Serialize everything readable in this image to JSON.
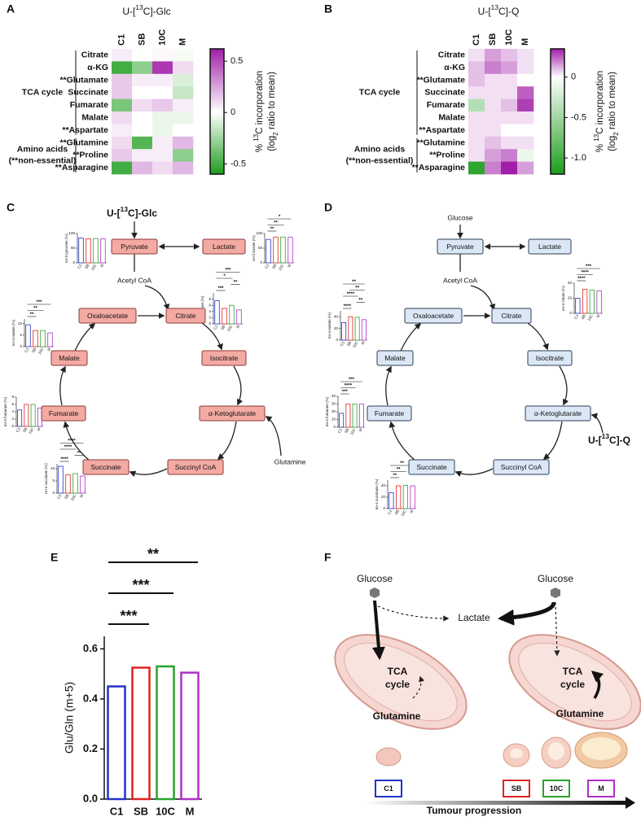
{
  "panel_labels": [
    "A",
    "B",
    "C",
    "D",
    "E",
    "F"
  ],
  "chart_data": [
    {
      "type": "heatmap",
      "title": [
        "U-[",
        "13",
        "C]-Glc"
      ],
      "columns": [
        "C1",
        "SB",
        "10C",
        "M"
      ],
      "rows": [
        "Citrate",
        "α-KG",
        "**Glutamate",
        "Succinate",
        "Fumarate",
        "Malate",
        "**Aspartate",
        "**Glutamine",
        "**Proline",
        "**Asparagine"
      ],
      "values": [
        [
          0.05,
          0,
          0.02,
          -0.02
        ],
        [
          -0.5,
          -0.3,
          0.55,
          0.1
        ],
        [
          0.15,
          0.05,
          0.05,
          -0.1
        ],
        [
          0.15,
          0,
          0,
          -0.15
        ],
        [
          -0.35,
          0.1,
          0.15,
          0.05
        ],
        [
          0.1,
          0,
          -0.05,
          -0.05
        ],
        [
          0.05,
          0,
          -0.05,
          0
        ],
        [
          0.1,
          -0.45,
          0.05,
          0.2
        ],
        [
          0.15,
          0.05,
          0.05,
          -0.3
        ],
        [
          -0.5,
          0.2,
          0.1,
          0.2
        ]
      ],
      "clim": [
        -0.6,
        0.62
      ],
      "cticks": [
        -0.5,
        0,
        0.5
      ],
      "colors": [
        "#1c9c1c",
        "#ffffff",
        "#a11fa8"
      ],
      "colorbar_label": [
        [
          "% ",
          "13",
          "C incorporation"
        ],
        [
          "(log",
          "2",
          " ratio to mean)"
        ]
      ],
      "groups": [
        {
          "label": [
            "TCA cycle"
          ],
          "rows": [
            "Citrate",
            "**Aspartate"
          ]
        },
        {
          "label": [
            "Amino acids",
            "(**non-essential)"
          ],
          "rows": [
            "**Glutamine",
            "**Asparagine"
          ]
        }
      ]
    },
    {
      "type": "heatmap",
      "title": [
        "U-[",
        "13",
        "C]-Q"
      ],
      "columns": [
        "C1",
        "SB",
        "10C",
        "M"
      ],
      "rows": [
        "Citrate",
        "α-KG",
        "**Glutamate",
        "Succinate",
        "Fumarate",
        "Malate",
        "**Aspartate",
        "**Glutamine",
        "**Proline",
        "**Asparagine"
      ],
      "values": [
        [
          0.05,
          0.15,
          0.1,
          0.05
        ],
        [
          0.1,
          0.2,
          0.15,
          0.05
        ],
        [
          0.1,
          0.05,
          0.05,
          0
        ],
        [
          0.05,
          0.05,
          0.05,
          0.25
        ],
        [
          -0.4,
          0.05,
          0.1,
          0.3
        ],
        [
          0.05,
          0.05,
          0.05,
          0.05
        ],
        [
          0.05,
          0.05,
          0,
          0
        ],
        [
          0.05,
          0.1,
          0.05,
          0.05
        ],
        [
          0.05,
          0.15,
          0.2,
          -0.1
        ],
        [
          -1.1,
          0.2,
          0.35,
          0.15
        ]
      ],
      "clim": [
        -1.2,
        0.35
      ],
      "cticks": [
        {
          "value": -1,
          "label": "-1.0"
        },
        -0.5,
        0
      ],
      "colors": [
        "#1c9c1c",
        "#ffffff",
        "#a11fa8"
      ],
      "colorbar_label": [
        [
          "% ",
          "13",
          "C incorporation"
        ],
        [
          "(log",
          "2",
          " ratio to mean)"
        ]
      ],
      "groups": [
        {
          "label": [
            "TCA cycle"
          ],
          "rows": [
            "Citrate",
            "**Aspartate"
          ]
        },
        {
          "label": [
            "Amino acids",
            "(**non-essential)"
          ],
          "rows": [
            "**Glutamine",
            "**Asparagine"
          ]
        }
      ]
    },
    {
      "type": "bar",
      "ylabel": "m+3 pyruvate (%)",
      "categories": [
        "C1",
        "SB",
        "10C",
        "M"
      ],
      "values": [
        85,
        82,
        83,
        82
      ],
      "colors": [
        "#2432c8",
        "#e0231f",
        "#2aa32a",
        "#b02ec8"
      ],
      "ylim": [
        0,
        100
      ],
      "yticks": [
        0,
        50,
        100
      ],
      "significance": []
    },
    {
      "type": "bar",
      "ylabel": "m+3 lactate (%)",
      "categories": [
        "C1",
        "SB",
        "10C",
        "M"
      ],
      "values": [
        80,
        88,
        88,
        87
      ],
      "colors": [
        "#2432c8",
        "#e0231f",
        "#2aa32a",
        "#b02ec8"
      ],
      "ylim": [
        0,
        100
      ],
      "yticks": [
        0,
        50,
        100
      ],
      "significance": [
        {
          "between": [
            "C1",
            "SB"
          ],
          "label": "**"
        },
        {
          "between": [
            "C1",
            "10C"
          ],
          "label": "**"
        },
        {
          "between": [
            "C1",
            "M"
          ],
          "label": "*"
        }
      ]
    },
    {
      "type": "bar",
      "ylabel": "m+6 citrate (%)",
      "categories": [
        "C1",
        "SB",
        "10C",
        "M"
      ],
      "values": [
        7.5,
        5,
        6,
        4.5
      ],
      "colors": [
        "#2432c8",
        "#e0231f",
        "#2aa32a",
        "#b02ec8"
      ],
      "ylim": [
        0,
        10
      ],
      "yticks": [
        0,
        2,
        4,
        6,
        8
      ],
      "significance": [
        {
          "between": [
            "C1",
            "SB"
          ],
          "label": "***"
        },
        {
          "between": [
            "10C",
            "M"
          ],
          "label": "**"
        },
        {
          "between": [
            "C1",
            "10C"
          ],
          "label": "*"
        },
        {
          "between": [
            "C1",
            "M"
          ],
          "label": "***"
        }
      ]
    },
    {
      "type": "bar",
      "ylabel": "m+4 malate (%)",
      "categories": [
        "C1",
        "SB",
        "10C",
        "M"
      ],
      "values": [
        9.5,
        7,
        7,
        6
      ],
      "colors": [
        "#2432c8",
        "#e0231f",
        "#2aa32a",
        "#b02ec8"
      ],
      "ylim": [
        0,
        12
      ],
      "yticks": [
        0,
        5,
        10
      ],
      "significance": [
        {
          "between": [
            "C1",
            "SB"
          ],
          "label": "**"
        },
        {
          "between": [
            "C1",
            "10C"
          ],
          "label": "**"
        },
        {
          "between": [
            "C1",
            "M"
          ],
          "label": "***"
        }
      ]
    },
    {
      "type": "bar",
      "ylabel": "m+4 fumarate (%)",
      "categories": [
        "C1",
        "SB",
        "10C",
        "M"
      ],
      "values": [
        4.5,
        6,
        6,
        5
      ],
      "colors": [
        "#2432c8",
        "#e0231f",
        "#2aa32a",
        "#b02ec8"
      ],
      "ylim": [
        0,
        8
      ],
      "yticks": [
        0,
        2,
        4,
        6,
        8
      ],
      "significance": []
    },
    {
      "type": "bar",
      "ylabel": "m+4 succinate (%)",
      "categories": [
        "C1",
        "SB",
        "10C",
        "M"
      ],
      "values": [
        11,
        7.5,
        8,
        7
      ],
      "colors": [
        "#2432c8",
        "#e0231f",
        "#2aa32a",
        "#b02ec8"
      ],
      "ylim": [
        0,
        12
      ],
      "yticks": [
        0,
        5,
        10
      ],
      "significance": [
        {
          "between": [
            "C1",
            "SB"
          ],
          "label": "****"
        },
        {
          "between": [
            "10C",
            "M"
          ],
          "label": "**"
        },
        {
          "between": [
            "C1",
            "10C"
          ],
          "label": "****"
        },
        {
          "between": [
            "C1",
            "M"
          ],
          "label": "****"
        }
      ]
    },
    {
      "type": "bar",
      "ylabel": "m+4 citrate (%)",
      "categories": [
        "C1",
        "SB",
        "10C",
        "M"
      ],
      "values": [
        20,
        32,
        31,
        30
      ],
      "colors": [
        "#2432c8",
        "#e0231f",
        "#2aa32a",
        "#b02ec8"
      ],
      "ylim": [
        0,
        40
      ],
      "yticks": [
        0,
        20,
        40
      ],
      "significance": [
        {
          "between": [
            "C1",
            "SB"
          ],
          "label": "****"
        },
        {
          "between": [
            "C1",
            "10C"
          ],
          "label": "****"
        },
        {
          "between": [
            "C1",
            "M"
          ],
          "label": "***"
        }
      ]
    },
    {
      "type": "bar",
      "ylabel": "m+4 malate (%)",
      "categories": [
        "C1",
        "SB",
        "10C",
        "M"
      ],
      "values": [
        30,
        40,
        39,
        35
      ],
      "colors": [
        "#2432c8",
        "#e0231f",
        "#2aa32a",
        "#b02ec8"
      ],
      "ylim": [
        0,
        50
      ],
      "yticks": [
        0,
        20,
        40
      ],
      "significance": [
        {
          "between": [
            "C1",
            "SB"
          ],
          "label": "****"
        },
        {
          "between": [
            "10C",
            "M"
          ],
          "label": "**"
        },
        {
          "between": [
            "C1",
            "10C"
          ],
          "label": "****"
        },
        {
          "between": [
            "SB",
            "M"
          ],
          "label": "**"
        },
        {
          "between": [
            "C1",
            "M"
          ],
          "label": "**"
        }
      ]
    },
    {
      "type": "bar",
      "ylabel": "m+4 fumarate (%)",
      "categories": [
        "C1",
        "SB",
        "10C",
        "M"
      ],
      "values": [
        18,
        30,
        30,
        30
      ],
      "colors": [
        "#2432c8",
        "#e0231f",
        "#2aa32a",
        "#b02ec8"
      ],
      "ylim": [
        0,
        40
      ],
      "yticks": [
        0,
        10,
        20,
        30,
        40
      ],
      "significance": [
        {
          "between": [
            "C1",
            "SB"
          ],
          "label": "***"
        },
        {
          "between": [
            "C1",
            "10C"
          ],
          "label": "****"
        },
        {
          "between": [
            "C1",
            "M"
          ],
          "label": "***"
        }
      ]
    },
    {
      "type": "bar",
      "ylabel": "m+4 succinate (%)",
      "categories": [
        "C1",
        "SB",
        "10C",
        "M"
      ],
      "values": [
        28,
        40,
        41,
        40
      ],
      "colors": [
        "#2432c8",
        "#e0231f",
        "#2aa32a",
        "#b02ec8"
      ],
      "ylim": [
        0,
        50
      ],
      "yticks": [
        0,
        20,
        40
      ],
      "significance": [
        {
          "between": [
            "C1",
            "SB"
          ],
          "label": "**"
        },
        {
          "between": [
            "C1",
            "10C"
          ],
          "label": "**"
        },
        {
          "between": [
            "C1",
            "M"
          ],
          "label": "**"
        }
      ]
    },
    {
      "type": "bar",
      "ylabel": "Glu/Gln (m+5)",
      "categories": [
        "C1",
        "SB",
        "10C",
        "M"
      ],
      "values": [
        0.45,
        0.525,
        0.53,
        0.505
      ],
      "colors": [
        "#2432c8",
        "#e0231f",
        "#2aa32a",
        "#b02ec8"
      ],
      "ylim": [
        0,
        0.65
      ],
      "yticks": [
        {
          "value": 0,
          "label": "0.0"
        },
        0.2,
        0.4,
        0.6
      ],
      "significance": [
        {
          "between": [
            "C1",
            "SB"
          ],
          "label": "***"
        },
        {
          "between": [
            "C1",
            "10C"
          ],
          "label": "***"
        },
        {
          "between": [
            "C1",
            "M"
          ],
          "label": "**"
        }
      ]
    }
  ],
  "pathways": [
    {
      "title": [
        "U-[",
        "13",
        "C]-Glc"
      ],
      "nodes": [
        "Pyruvate",
        "Lactate",
        "Citrate",
        "Oxaloacetate",
        "Isocitrate",
        "α-Ketoglutarate",
        "Succinyl CoA",
        "Succinate",
        "Fumarate",
        "Malate"
      ],
      "labels": [
        "Acetyl CoA",
        "Glutamine"
      ],
      "fill": "#f3aaa3",
      "stroke": "#8c3a36"
    },
    {
      "title": [
        "U-[",
        "13",
        "C]-Q"
      ],
      "nodes": [
        "Pyruvate",
        "Lactate",
        "Citrate",
        "Oxaloacetate",
        "Isocitrate",
        "α-Ketoglutarate",
        "Succinyl CoA",
        "Succinate",
        "Fumarate",
        "Malate"
      ],
      "labels": [
        "Acetyl CoA",
        "Glucose"
      ],
      "fill": "#dbe7f5",
      "stroke": "#2c3e55"
    }
  ],
  "scheme": {
    "sources": [
      "Glucose",
      "Glucose"
    ],
    "product": "Lactate",
    "cycle": [
      [
        "TCA",
        "cycle"
      ],
      [
        "TCA",
        "cycle"
      ]
    ],
    "inputs": [
      "Glutamine",
      "Glutamine"
    ],
    "stages": [
      "C1",
      "SB",
      "10C",
      "M"
    ],
    "stage_colors": [
      "#2432c8",
      "#e0231f",
      "#2aa32a",
      "#b02ec8"
    ],
    "axis_label": "Tumour progression"
  }
}
